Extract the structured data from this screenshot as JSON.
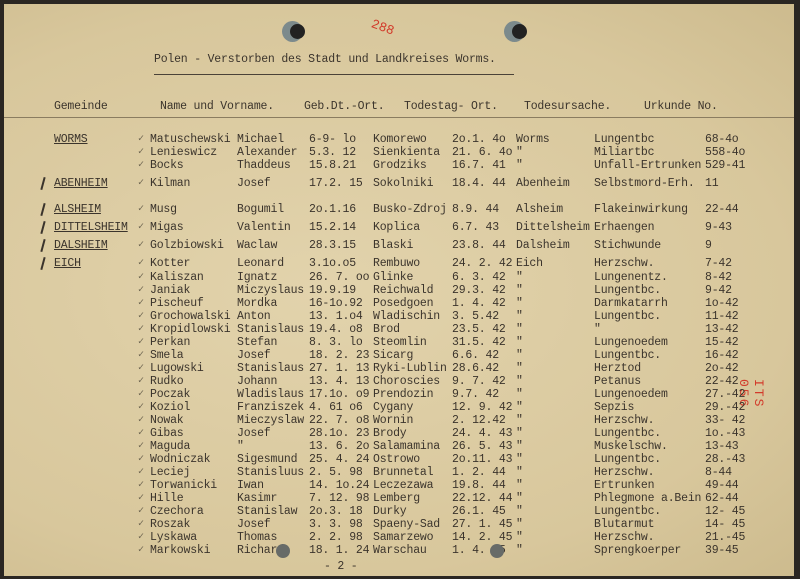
{
  "document": {
    "title": "Polen - Verstorben des Stadt und Landkreises Worms.",
    "page_mark": "288",
    "stamp": "ITS 056",
    "footer_page": "- 2 -"
  },
  "headers": {
    "gemeinde": "Gemeinde",
    "name": "Name und Vorname.",
    "birth": "Geb.Dt.-Ort.",
    "death": "Todestag- Ort.",
    "cause": "Todesursache.",
    "urkunde": "Urkunde No."
  },
  "rows": [
    {
      "gemeinde": "WORMS",
      "surname": "Matuschewski",
      "first": "Michael",
      "born": "6-9- lo",
      "birthplace": "Komorewo",
      "died": "2o.1. 4o",
      "deathplace": "Worms",
      "cause": "Lungentbc",
      "urkunde": "68-4o"
    },
    {
      "gemeinde": "",
      "surname": "Lenieswicz",
      "first": "Alexander",
      "born": "5.3. 12",
      "birthplace": "Sienkienta",
      "died": "21. 6. 4o",
      "deathplace": "\"",
      "cause": "Miliartbc",
      "urkunde": "558-4o"
    },
    {
      "gemeinde": "",
      "surname": "Bocks",
      "first": "Thaddeus",
      "born": "15.8.21",
      "birthplace": "Grodziks",
      "died": "16.7. 41",
      "deathplace": "\"",
      "cause": "Unfall-Ertrunken",
      "urkunde": "529-41"
    },
    {
      "gemeinde": "ABENHEIM",
      "surname": "Kilman",
      "first": "Josef",
      "born": "17.2. 15",
      "birthplace": "Sokolniki",
      "died": "18.4. 44",
      "deathplace": "Abenheim",
      "cause": "Selbstmord-Erh.",
      "urkunde": "11"
    },
    {
      "gemeinde": "ALSHEIM",
      "surname": "Musg",
      "first": "Bogumil",
      "born": "2o.1.16",
      "birthplace": "Busko-Zdroj",
      "died": "8.9. 44",
      "deathplace": "Alsheim",
      "cause": "Flakeinwirkung",
      "urkunde": "22-44"
    },
    {
      "gemeinde": "DITTELSHEIM",
      "surname": "Migas",
      "first": "Valentin",
      "born": "15.2.14",
      "birthplace": "Koplica",
      "died": "6.7. 43",
      "deathplace": "Dittelsheim",
      "cause": "Erhaengen",
      "urkunde": "9-43"
    },
    {
      "gemeinde": "DALSHEIM",
      "surname": "Golzbiowski",
      "first": "Waclaw",
      "born": "28.3.15",
      "birthplace": "Blaski",
      "died": "23.8. 44",
      "deathplace": "Dalsheim",
      "cause": "Stichwunde",
      "urkunde": "9"
    },
    {
      "gemeinde": "EICH",
      "surname": "Kotter",
      "first": "Leonard",
      "born": "3.1o.o5",
      "birthplace": "Rembuwo",
      "died": "24. 2. 42",
      "deathplace": "Eich",
      "cause": "Herzschw.",
      "urkunde": "7-42"
    },
    {
      "gemeinde": "",
      "surname": "Kaliszan",
      "first": "Ignatz",
      "born": "26. 7. oo",
      "birthplace": "Glinke",
      "died": "6. 3. 42",
      "deathplace": "\"",
      "cause": "Lungenentz.",
      "urkunde": "8-42"
    },
    {
      "gemeinde": "",
      "surname": "Janiak",
      "first": "Miczyslaus",
      "born": "19.9.19",
      "birthplace": "Reichwald",
      "died": "29.3. 42",
      "deathplace": "\"",
      "cause": "Lungentbc.",
      "urkunde": "9-42"
    },
    {
      "gemeinde": "",
      "surname": "Pischeuf",
      "first": "Mordka",
      "born": "16-1o.92",
      "birthplace": "Posedgoen",
      "died": "1. 4. 42",
      "deathplace": "\"",
      "cause": "Darmkatarrh",
      "urkunde": "1o-42"
    },
    {
      "gemeinde": "",
      "surname": "Grochowalski",
      "first": "Anton",
      "born": "13. 1.o4",
      "birthplace": "Wladischin",
      "died": "3. 5.42",
      "deathplace": "\"",
      "cause": "Lungentbc.",
      "urkunde": "11-42"
    },
    {
      "gemeinde": "",
      "surname": "Kropidlowski",
      "first": "Stanislaus",
      "born": "19.4. o8",
      "birthplace": "Brod",
      "died": "23.5. 42",
      "deathplace": "\"",
      "cause": "\"",
      "urkunde": "13-42"
    },
    {
      "gemeinde": "",
      "surname": "Perkan",
      "first": "Stefan",
      "born": "8. 3. lo",
      "birthplace": "Steomlin",
      "died": "31.5. 42",
      "deathplace": "\"",
      "cause": "Lungenoedem",
      "urkunde": "15-42"
    },
    {
      "gemeinde": "",
      "surname": "Smela",
      "first": "Josef",
      "born": "18. 2. 23",
      "birthplace": "Sicarg",
      "died": "6.6. 42",
      "deathplace": "\"",
      "cause": "Lungentbc.",
      "urkunde": "16-42"
    },
    {
      "gemeinde": "",
      "surname": "Lugowski",
      "first": "Stanislaus",
      "born": "27. 1. 13",
      "birthplace": "Ryki-Lublin",
      "died": "28.6.42",
      "deathplace": "\"",
      "cause": "Herztod",
      "urkunde": "2o-42"
    },
    {
      "gemeinde": "",
      "surname": "Rudko",
      "first": "Johann",
      "born": "13. 4. 13",
      "birthplace": "Choroscies",
      "died": "9. 7. 42",
      "deathplace": "\"",
      "cause": "Petanus",
      "urkunde": "22-42"
    },
    {
      "gemeinde": "",
      "surname": "Poczak",
      "first": "Wladislaus",
      "born": "17.1o. o9",
      "birthplace": "Prendozin",
      "died": "9.7. 42",
      "deathplace": "\"",
      "cause": "Lungenoedem",
      "urkunde": "27.-42"
    },
    {
      "gemeinde": "",
      "surname": "Koziol",
      "first": "Franziszek",
      "born": "4. 61 o6",
      "birthplace": "Cygany",
      "died": "12. 9. 42",
      "deathplace": "\"",
      "cause": "Sepzis",
      "urkunde": "29.-42"
    },
    {
      "gemeinde": "",
      "surname": "Nowak",
      "first": "Mieczyslaw",
      "born": "22. 7. o8",
      "birthplace": "Wornin",
      "died": "2. 12.42",
      "deathplace": "\"",
      "cause": "Herzschw.",
      "urkunde": "33- 42"
    },
    {
      "gemeinde": "",
      "surname": "Gibas",
      "first": "Josef",
      "born": "28.1o. 23",
      "birthplace": "Brody",
      "died": "24. 4. 43",
      "deathplace": "\"",
      "cause": "Lungentbc.",
      "urkunde": "1o.-43"
    },
    {
      "gemeinde": "",
      "surname": "Maguda",
      "first": "\"",
      "born": "13. 6. 2o",
      "birthplace": "Salamamina",
      "died": "26. 5. 43",
      "deathplace": "\"",
      "cause": "Muskelschw.",
      "urkunde": "13-43"
    },
    {
      "gemeinde": "",
      "surname": "Wodniczak",
      "first": "Sigesmund",
      "born": "25. 4. 24",
      "birthplace": "Ostrowo",
      "died": "2o.11. 43",
      "deathplace": "\"",
      "cause": "Lungentbc.",
      "urkunde": "28.-43"
    },
    {
      "gemeinde": "",
      "surname": "Leciej",
      "first": "Stanisluus",
      "born": "2. 5. 98",
      "birthplace": "Brunnetal",
      "died": "1. 2. 44",
      "deathplace": "\"",
      "cause": "Herzschw.",
      "urkunde": "8-44"
    },
    {
      "gemeinde": "",
      "surname": "Torwanicki",
      "first": "Iwan",
      "born": "14. 1o.24",
      "birthplace": "Leczezawa",
      "died": "19.8. 44",
      "deathplace": "\"",
      "cause": "Ertrunken",
      "urkunde": "49-44"
    },
    {
      "gemeinde": "",
      "surname": "Hille",
      "first": "Kasimr",
      "born": "7. 12. 98",
      "birthplace": "Lemberg",
      "died": "22.12. 44",
      "deathplace": "\"",
      "cause": "Phlegmone a.Bein",
      "urkunde": "62-44"
    },
    {
      "gemeinde": "",
      "surname": "Czechora",
      "first": "Stanislaw",
      "born": "2o.3. 18",
      "birthplace": "Durky",
      "died": "26.1. 45",
      "deathplace": "\"",
      "cause": "Lungentbc.",
      "urkunde": "12- 45"
    },
    {
      "gemeinde": "",
      "surname": "Roszak",
      "first": "Josef",
      "born": "3. 3. 98",
      "birthplace": "Spaeny-Sad",
      "died": "27. 1. 45",
      "deathplace": "\"",
      "cause": "Blutarmut",
      "urkunde": "14- 45"
    },
    {
      "gemeinde": "",
      "surname": "Lyskawa",
      "first": "Thomas",
      "born": "2. 2. 98",
      "birthplace": "Samarzewo",
      "died": "14. 2. 45",
      "deathplace": "\"",
      "cause": "Herzschw.",
      "urkunde": "21.-45"
    },
    {
      "gemeinde": "",
      "surname": "Markowski",
      "first": "Richard",
      "born": "18. 1. 24",
      "birthplace": "Warschau",
      "died": "1. 4. 45",
      "deathplace": "\"",
      "cause": "Sprengkoerper",
      "urkunde": "39-45"
    }
  ]
}
